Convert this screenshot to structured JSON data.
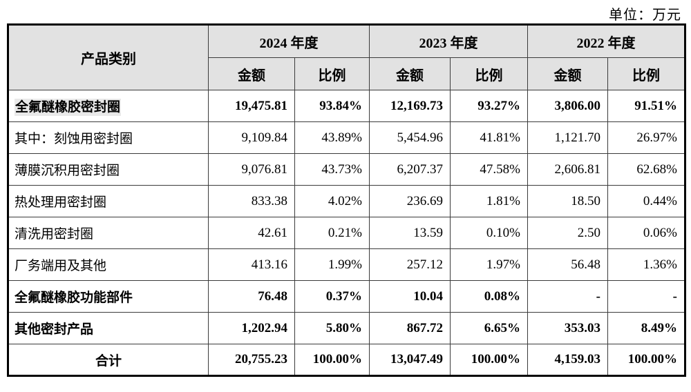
{
  "unit_label": "单位：万元",
  "table": {
    "category_header": "产品类别",
    "amount_label": "金额",
    "ratio_label": "比例",
    "year_groups": [
      "2024 年度",
      "2023 年度",
      "2022 年度"
    ],
    "rows": [
      {
        "label": "全氟醚橡胶密封圈",
        "bold": true,
        "highlight": true,
        "center": false,
        "values": [
          "19,475.81",
          "93.84%",
          "12,169.73",
          "93.27%",
          "3,806.00",
          "91.51%"
        ]
      },
      {
        "label": "其中：刻蚀用密封圈",
        "bold": false,
        "highlight": false,
        "center": false,
        "values": [
          "9,109.84",
          "43.89%",
          "5,454.96",
          "41.81%",
          "1,121.70",
          "26.97%"
        ]
      },
      {
        "label": "薄膜沉积用密封圈",
        "bold": false,
        "highlight": false,
        "center": false,
        "values": [
          "9,076.81",
          "43.73%",
          "6,207.37",
          "47.58%",
          "2,606.81",
          "62.68%"
        ]
      },
      {
        "label": "热处理用密封圈",
        "bold": false,
        "highlight": false,
        "center": false,
        "values": [
          "833.38",
          "4.02%",
          "236.69",
          "1.81%",
          "18.50",
          "0.44%"
        ]
      },
      {
        "label": "清洗用密封圈",
        "bold": false,
        "highlight": false,
        "center": false,
        "values": [
          "42.61",
          "0.21%",
          "13.59",
          "0.10%",
          "2.50",
          "0.06%"
        ]
      },
      {
        "label": "厂务端用及其他",
        "bold": false,
        "highlight": false,
        "center": false,
        "values": [
          "413.16",
          "1.99%",
          "257.12",
          "1.97%",
          "56.48",
          "1.36%"
        ]
      },
      {
        "label": "全氟醚橡胶功能部件",
        "bold": true,
        "highlight": false,
        "center": false,
        "values": [
          "76.48",
          "0.37%",
          "10.04",
          "0.08%",
          "-",
          "-"
        ]
      },
      {
        "label": "其他密封产品",
        "bold": true,
        "highlight": false,
        "center": false,
        "values": [
          "1,202.94",
          "5.80%",
          "867.72",
          "6.65%",
          "353.03",
          "8.49%"
        ]
      },
      {
        "label": "合计",
        "bold": true,
        "highlight": false,
        "center": true,
        "values": [
          "20,755.23",
          "100.00%",
          "13,047.49",
          "100.00%",
          "4,159.03",
          "100.00%"
        ]
      }
    ]
  }
}
